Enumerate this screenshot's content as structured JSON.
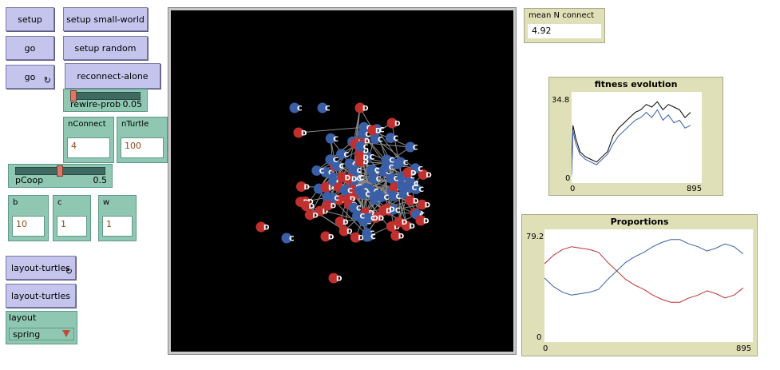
{
  "buttons": {
    "setup": "setup",
    "setup_small_world": "setup small-world",
    "go": "go",
    "setup_random": "setup random",
    "go_forever": "go",
    "reconnect_alone": "reconnect-alone",
    "layout_turtles_forever": "layout-turtles",
    "layout_turtles": "layout-turtles"
  },
  "sliders": {
    "rewire_prob": {
      "label": "rewire-prob",
      "value": "0.05",
      "min": 0,
      "max": 1,
      "fraction": 0.05
    },
    "pcoop": {
      "label": "pCoop",
      "value": "0.5",
      "min": 0,
      "max": 1,
      "fraction": 0.5
    }
  },
  "inputs": {
    "nconnect": {
      "label": "nConnect",
      "value": "4"
    },
    "nturtle": {
      "label": "nTurtle",
      "value": "100"
    },
    "b": {
      "label": "b",
      "value": "10"
    },
    "c": {
      "label": "c",
      "value": "1"
    },
    "w": {
      "label": "w",
      "value": "1"
    }
  },
  "chooser": {
    "label": "layout",
    "value": "spring"
  },
  "monitor": {
    "label": "mean N connect",
    "value": "4.92"
  },
  "agent_labels": {
    "cooperator": "C",
    "defector": "D"
  },
  "colors": {
    "cooperator": "#3b5fa6",
    "defector": "#c0302f",
    "link": "#8a8a8a",
    "button": "#c4c4ec",
    "widget": "#8fc7b3",
    "plot_bg": "#e0e0b8"
  },
  "plots": {
    "fitness": {
      "title": "fitness evolution",
      "ymax": "34.8",
      "ymin": "0",
      "xmin": "0",
      "xmax": "895"
    },
    "proportions": {
      "title": "Proportions",
      "ymax": "79.2",
      "ymin": "0",
      "xmin": "0",
      "xmax": "895"
    }
  },
  "chart_data": [
    {
      "type": "line",
      "title": "fitness evolution",
      "xlim": [
        0,
        895
      ],
      "ylim": [
        0,
        34.8
      ],
      "series": [
        {
          "color": "#000000",
          "x": [
            0,
            10,
            30,
            60,
            100,
            140,
            180,
            220,
            260,
            300,
            340,
            380,
            420,
            460,
            500,
            540,
            580,
            620,
            660,
            700,
            740,
            780,
            820,
            860
          ],
          "values": [
            9,
            22,
            17,
            12,
            10,
            9,
            8,
            10,
            12,
            18,
            21,
            23,
            25,
            27,
            28,
            30,
            29,
            31,
            28,
            30,
            29,
            28,
            25,
            27
          ]
        },
        {
          "color": "#3b5fa6",
          "x": [
            0,
            10,
            30,
            60,
            100,
            140,
            180,
            220,
            260,
            300,
            340,
            380,
            420,
            460,
            500,
            540,
            580,
            620,
            660,
            700,
            740,
            780,
            820,
            860
          ],
          "values": [
            3,
            20,
            15,
            11,
            9,
            8,
            7,
            9,
            11,
            15,
            18,
            20,
            22,
            24,
            25,
            27,
            25,
            28,
            24,
            26,
            23,
            24,
            21,
            22
          ]
        }
      ]
    },
    {
      "type": "line",
      "title": "Proportions",
      "xlim": [
        0,
        895
      ],
      "ylim": [
        0,
        79.2
      ],
      "series": [
        {
          "color": "#c0302f",
          "x": [
            0,
            40,
            80,
            120,
            160,
            200,
            240,
            280,
            320,
            360,
            400,
            440,
            480,
            520,
            560,
            600,
            640,
            680,
            720,
            760,
            800,
            840,
            880
          ],
          "values": [
            55,
            61,
            65,
            67,
            66,
            65,
            63,
            56,
            50,
            44,
            40,
            37,
            33,
            30,
            28,
            28,
            31,
            33,
            36,
            34,
            31,
            33,
            38
          ]
        },
        {
          "color": "#3b5fa6",
          "x": [
            0,
            40,
            80,
            120,
            160,
            200,
            240,
            280,
            320,
            360,
            400,
            440,
            480,
            520,
            560,
            600,
            640,
            680,
            720,
            760,
            800,
            840,
            880
          ],
          "values": [
            45,
            39,
            35,
            33,
            34,
            35,
            37,
            44,
            50,
            56,
            60,
            63,
            67,
            70,
            72,
            72,
            69,
            67,
            64,
            66,
            69,
            67,
            62
          ]
        }
      ]
    }
  ]
}
